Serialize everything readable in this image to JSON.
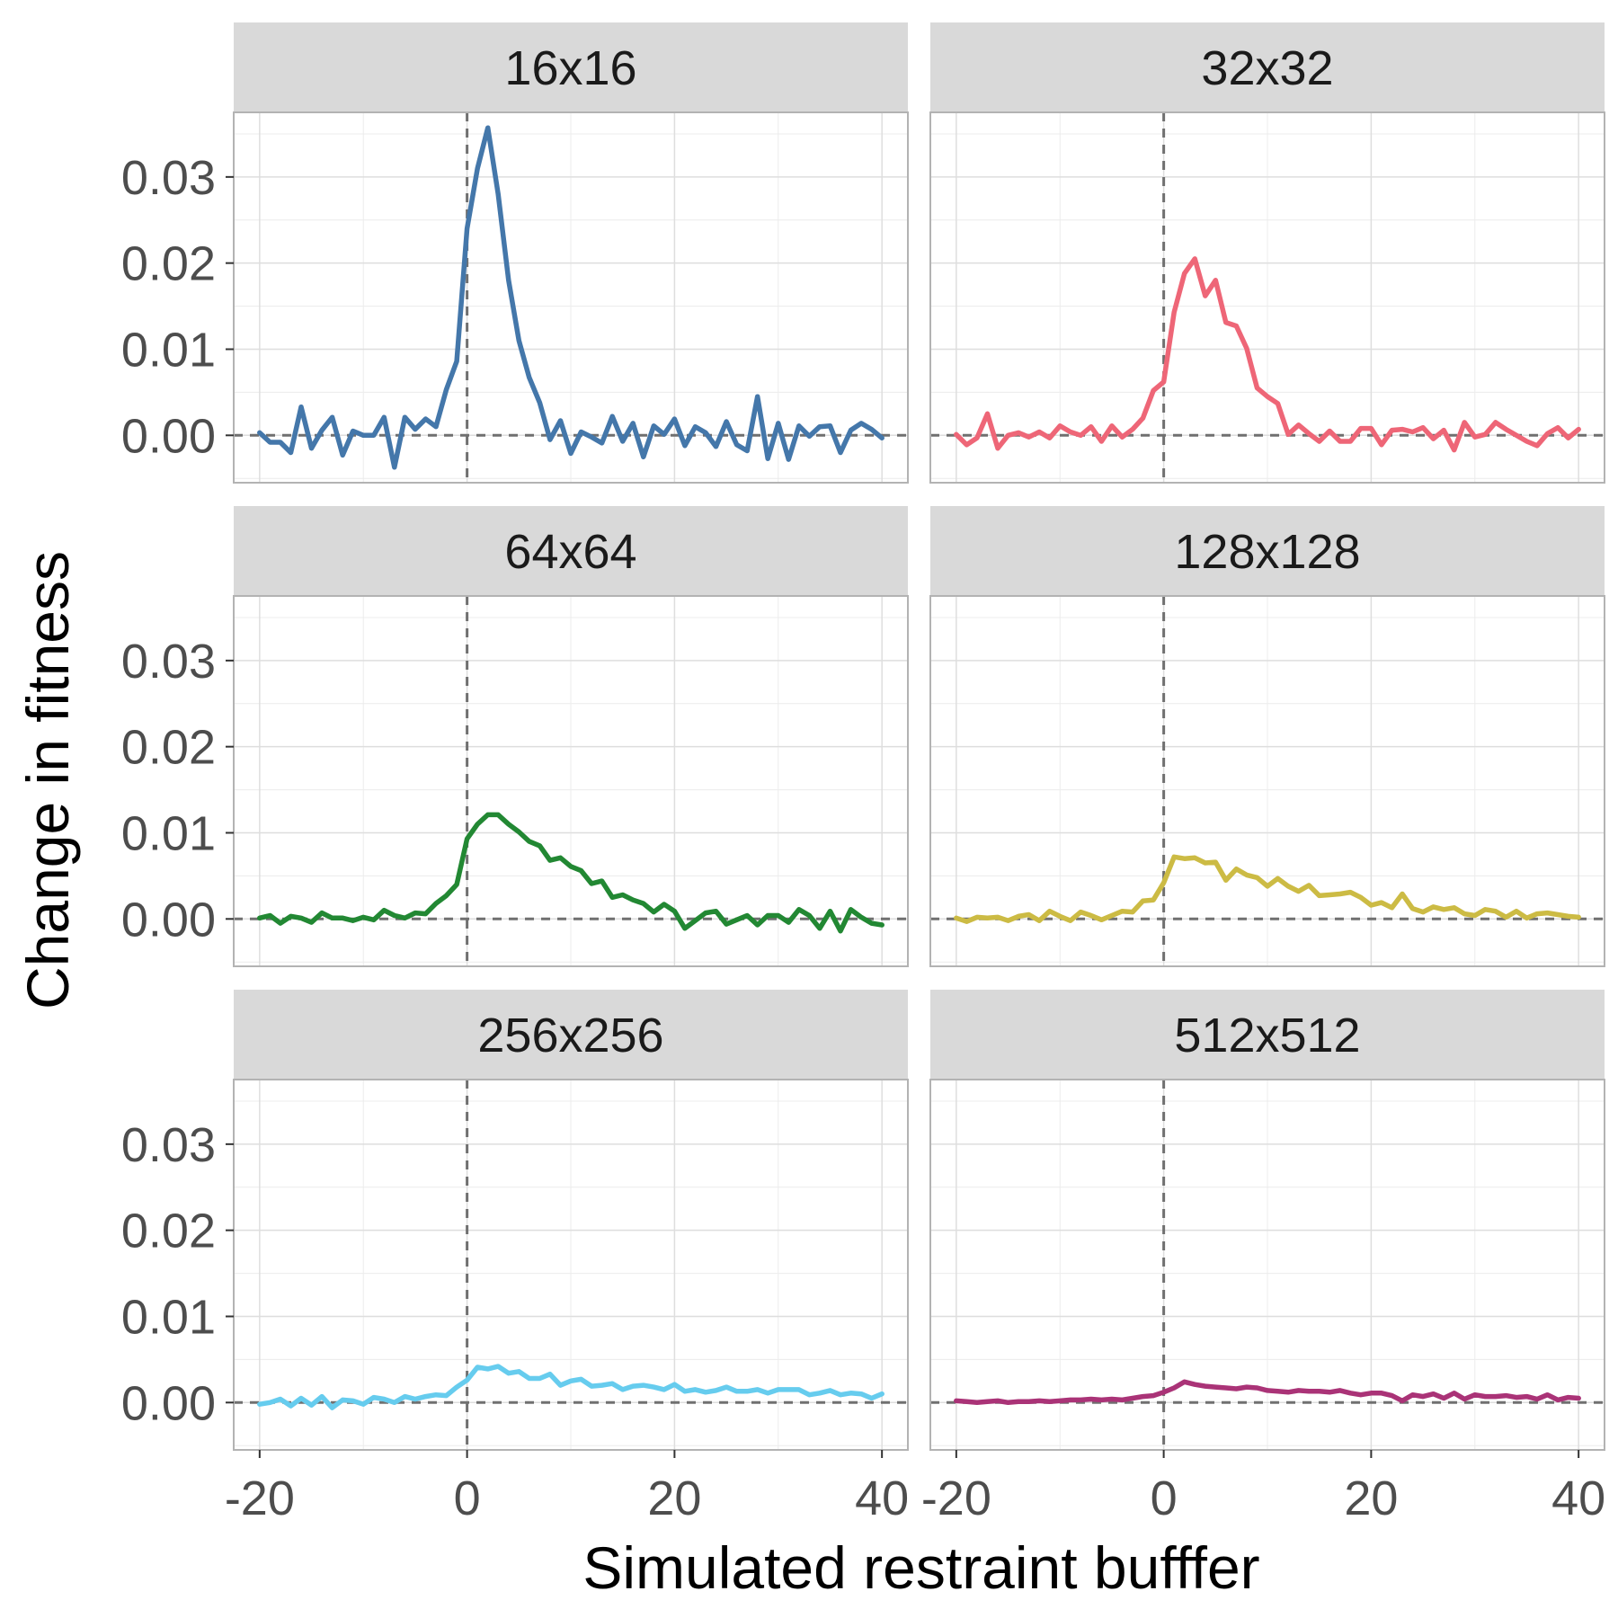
{
  "chart_data": {
    "type": "line",
    "layout": "facet-grid-3x2",
    "xlabel": "Simulated restraint bufffer",
    "ylabel": "Change in fitness",
    "xlim": [
      -22.5,
      42.5
    ],
    "ylim": [
      -0.0055,
      0.0375
    ],
    "x_ticks": [
      -20,
      0,
      20,
      40
    ],
    "x_tick_labels": [
      "-20",
      "0",
      "20",
      "40"
    ],
    "y_ticks": [
      0.0,
      0.01,
      0.02,
      0.03
    ],
    "y_tick_labels": [
      "0.00",
      "0.01",
      "0.02",
      "0.03"
    ],
    "reference_lines": {
      "x": 0,
      "y": 0,
      "style": "dashed"
    },
    "grid": true,
    "x": [
      -20,
      -19,
      -18,
      -17,
      -16,
      -15,
      -14,
      -13,
      -12,
      -11,
      -10,
      -9,
      -8,
      -7,
      -6,
      -5,
      -4,
      -3,
      -2,
      -1,
      0,
      1,
      2,
      3,
      4,
      5,
      6,
      7,
      8,
      9,
      10,
      11,
      12,
      13,
      14,
      15,
      16,
      17,
      18,
      19,
      20,
      21,
      22,
      23,
      24,
      25,
      26,
      27,
      28,
      29,
      30,
      31,
      32,
      33,
      34,
      35,
      36,
      37,
      38,
      39,
      40
    ],
    "panels": [
      {
        "title": "16x16",
        "color": "#4477AA",
        "values": [
          0.0003,
          -0.0008,
          -0.0008,
          -0.002,
          0.0033,
          -0.0015,
          0.0006,
          0.0021,
          -0.0023,
          0.0005,
          0.0,
          0.0,
          0.0021,
          -0.0037,
          0.0021,
          0.0007,
          0.0019,
          0.001,
          0.0053,
          0.0086,
          0.024,
          0.031,
          0.0357,
          0.028,
          0.018,
          0.011,
          0.0067,
          0.0038,
          -0.0005,
          0.0017,
          -0.0021,
          0.0004,
          -0.0002,
          -0.0009,
          0.0022,
          -0.0007,
          0.0014,
          -0.0025,
          0.0011,
          0.0001,
          0.0019,
          -0.0012,
          0.001,
          0.0003,
          -0.0013,
          0.0016,
          -0.0011,
          -0.0018,
          0.0045,
          -0.0027,
          0.0014,
          -0.0028,
          0.0011,
          -0.0001,
          0.001,
          0.0011,
          -0.002,
          0.0006,
          0.0014,
          0.0007,
          -0.0003
        ]
      },
      {
        "title": "32x32",
        "color": "#EE6677",
        "values": [
          0.0001,
          -0.0011,
          -0.0003,
          0.0025,
          -0.0015,
          0.0,
          0.0003,
          -0.0002,
          0.0004,
          -0.0003,
          0.0011,
          0.0004,
          0.0,
          0.001,
          -0.0007,
          0.0011,
          -0.0002,
          0.0007,
          0.002,
          0.0052,
          0.0062,
          0.0143,
          0.0188,
          0.0205,
          0.0162,
          0.018,
          0.0131,
          0.0127,
          0.0101,
          0.0055,
          0.0045,
          0.0037,
          0.0001,
          0.0012,
          0.0002,
          -0.0007,
          0.0005,
          -0.0007,
          -0.0007,
          0.0008,
          0.0008,
          -0.0011,
          0.0006,
          0.0007,
          0.0004,
          0.0009,
          -0.0004,
          0.0006,
          -0.0017,
          0.0015,
          -0.0002,
          0.0001,
          0.0015,
          0.0007,
          0.0,
          -0.0007,
          -0.0012,
          0.0002,
          0.0009,
          -0.0003,
          0.0007
        ]
      },
      {
        "title": "64x64",
        "color": "#228833",
        "values": [
          0.0001,
          0.0004,
          -0.0005,
          0.0003,
          0.0001,
          -0.0004,
          0.0007,
          0.0001,
          0.0001,
          -0.0002,
          0.0002,
          -0.0001,
          0.001,
          0.0004,
          0.0001,
          0.0007,
          0.0006,
          0.0018,
          0.0027,
          0.004,
          0.0093,
          0.011,
          0.0121,
          0.0121,
          0.011,
          0.0101,
          0.009,
          0.0085,
          0.0068,
          0.0071,
          0.0061,
          0.0056,
          0.0041,
          0.0044,
          0.0025,
          0.0028,
          0.0022,
          0.0018,
          0.0008,
          0.0017,
          0.0009,
          -0.0011,
          -0.0002,
          0.0007,
          0.0009,
          -0.0006,
          -0.0001,
          0.0004,
          -0.0007,
          0.0004,
          0.0004,
          -0.0004,
          0.0011,
          0.0004,
          -0.0011,
          0.0009,
          -0.0014,
          0.0011,
          0.0002,
          -0.0005,
          -0.0007
        ]
      },
      {
        "title": "128x128",
        "color": "#CCBB44",
        "values": [
          0.0001,
          -0.0003,
          0.0002,
          0.0001,
          0.0002,
          -0.0002,
          0.0003,
          0.0005,
          -0.0002,
          0.0009,
          0.0003,
          -0.0002,
          0.0008,
          0.0004,
          -0.0001,
          0.0004,
          0.0009,
          0.0008,
          0.0021,
          0.0022,
          0.0042,
          0.0072,
          0.007,
          0.0071,
          0.0065,
          0.0066,
          0.0045,
          0.0058,
          0.0051,
          0.0048,
          0.0038,
          0.0047,
          0.0038,
          0.0032,
          0.0039,
          0.0027,
          0.0028,
          0.0029,
          0.0031,
          0.0025,
          0.0016,
          0.0019,
          0.0013,
          0.0029,
          0.0012,
          0.0008,
          0.0014,
          0.0011,
          0.0013,
          0.0006,
          0.0004,
          0.0011,
          0.0009,
          0.0002,
          0.0009,
          0.0001,
          0.0006,
          0.0007,
          0.0005,
          0.0003,
          0.0002
        ]
      },
      {
        "title": "256x256",
        "color": "#66CCEE",
        "values": [
          -0.0002,
          0.0,
          0.0004,
          -0.0004,
          0.0005,
          -0.0003,
          0.0007,
          -0.0006,
          0.0003,
          0.0002,
          -0.0002,
          0.0006,
          0.0004,
          0.0,
          0.0007,
          0.0004,
          0.0007,
          0.0009,
          0.0008,
          0.0018,
          0.0026,
          0.0041,
          0.0039,
          0.0042,
          0.0034,
          0.0036,
          0.0028,
          0.0028,
          0.0033,
          0.002,
          0.0025,
          0.0027,
          0.0019,
          0.002,
          0.0022,
          0.0015,
          0.0019,
          0.002,
          0.0018,
          0.0015,
          0.0021,
          0.0013,
          0.0015,
          0.0012,
          0.0014,
          0.0018,
          0.0013,
          0.0013,
          0.0015,
          0.0011,
          0.0015,
          0.0015,
          0.0015,
          0.0009,
          0.0011,
          0.0014,
          0.0009,
          0.0011,
          0.001,
          0.0005,
          0.001
        ]
      },
      {
        "title": "512x512",
        "color": "#AA3377",
        "values": [
          0.0002,
          0.0001,
          0.0,
          0.0001,
          0.0002,
          0.0,
          0.0001,
          0.0001,
          0.0002,
          0.0001,
          0.0002,
          0.0003,
          0.0003,
          0.0004,
          0.0003,
          0.0004,
          0.0003,
          0.0005,
          0.0007,
          0.0008,
          0.0012,
          0.0017,
          0.0024,
          0.0021,
          0.0019,
          0.0018,
          0.0017,
          0.0016,
          0.0018,
          0.0017,
          0.0014,
          0.0013,
          0.0012,
          0.0014,
          0.0013,
          0.0013,
          0.0012,
          0.0014,
          0.0011,
          0.0009,
          0.0011,
          0.0011,
          0.0008,
          0.0002,
          0.0009,
          0.0007,
          0.001,
          0.0005,
          0.0011,
          0.0004,
          0.0009,
          0.0007,
          0.0007,
          0.0008,
          0.0006,
          0.0007,
          0.0004,
          0.0009,
          0.0003,
          0.0006,
          0.0005
        ]
      }
    ]
  }
}
